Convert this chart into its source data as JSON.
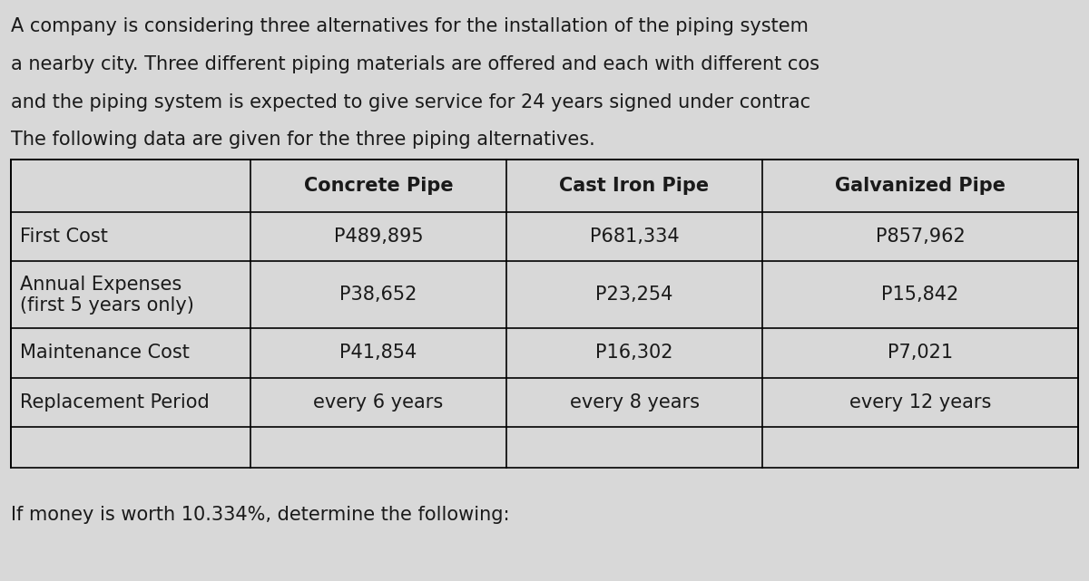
{
  "background_color": "#d8d8d8",
  "intro_lines": [
    "A company is considering three alternatives for the installation of the piping system",
    "a nearby city. Three different piping materials are offered and each with different cos",
    "and the piping system is expected to give service for 24 years signed under contrac",
    "The following data are given for the three piping alternatives."
  ],
  "footer_line": "If money is worth 10.334%, determine the following:",
  "col_headers": [
    "",
    "Concrete Pipe",
    "Cast Iron Pipe",
    "Galvanized Pipe"
  ],
  "rows": [
    [
      "First Cost",
      "P489,895",
      "P681,334",
      "P857,962"
    ],
    [
      "Annual Expenses\n(first 5 years only)",
      "P38,652",
      "P23,254",
      "P15,842"
    ],
    [
      "Maintenance Cost",
      "P41,854",
      "P16,302",
      "P7,021"
    ],
    [
      "Replacement Period",
      "every 6 years",
      "every 8 years",
      "every 12 years"
    ]
  ],
  "text_color": "#1a1a1a",
  "table_bg": "#d8d8d8",
  "header_fontsize": 15,
  "body_fontsize": 15,
  "intro_fontsize": 15,
  "footer_fontsize": 15
}
